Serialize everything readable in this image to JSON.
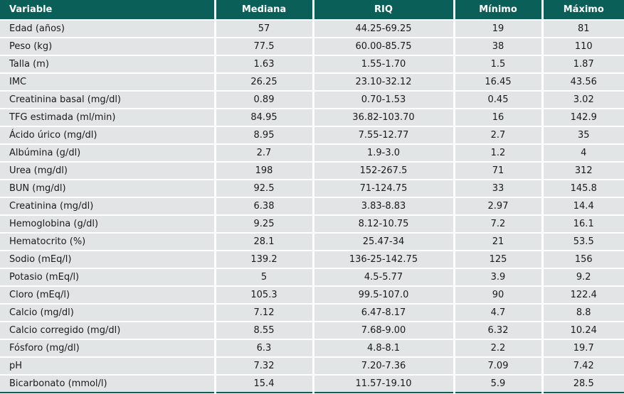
{
  "table": {
    "columns": [
      {
        "label": "Variable"
      },
      {
        "label": "Mediana"
      },
      {
        "label": "RIQ"
      },
      {
        "label": "Mínimo"
      },
      {
        "label": "Máximo"
      }
    ],
    "rows": [
      [
        "Edad (años)",
        "57",
        "44.25-69.25",
        "19",
        "81"
      ],
      [
        "Peso (kg)",
        "77.5",
        "60.00-85.75",
        "38",
        "110"
      ],
      [
        "Talla (m)",
        "1.63",
        "1.55-1.70",
        "1.5",
        "1.87"
      ],
      [
        "IMC",
        "26.25",
        "23.10-32.12",
        "16.45",
        "43.56"
      ],
      [
        "Creatinina basal (mg/dl)",
        "0.89",
        "0.70-1.53",
        "0.45",
        "3.02"
      ],
      [
        "TFG estimada (ml/min)",
        "84.95",
        "36.82-103.70",
        "16",
        "142.9"
      ],
      [
        "Ácido úrico (mg/dl)",
        "8.95",
        "7.55-12.77",
        "2.7",
        "35"
      ],
      [
        "Albúmina (g/dl)",
        "2.7",
        "1.9-3.0",
        "1.2",
        "4"
      ],
      [
        "Urea (mg/dl)",
        "198",
        "152-267.5",
        "71",
        "312"
      ],
      [
        "BUN (mg/dl)",
        "92.5",
        "71-124.75",
        "33",
        "145.8"
      ],
      [
        "Creatinina (mg/dl)",
        "6.38",
        "3.83-8.83",
        "2.97",
        "14.4"
      ],
      [
        "Hemoglobina (g/dl)",
        "9.25",
        "8.12-10.75",
        "7.2",
        "16.1"
      ],
      [
        "Hematocrito (%)",
        "28.1",
        "25.47-34",
        "21",
        "53.5"
      ],
      [
        "Sodio (mEq/l)",
        "139.2",
        "136-25-142.75",
        "125",
        "156"
      ],
      [
        "Potasio (mEq/l)",
        "5",
        "4.5-5.77",
        "3.9",
        "9.2"
      ],
      [
        "Cloro (mEq/l)",
        "105.3",
        "99.5-107.0",
        "90",
        "122.4"
      ],
      [
        "Calcio (mg/dl)",
        "7.12",
        "6.47-8.17",
        "4.7",
        "8.8"
      ],
      [
        "Calcio corregido (mg/dl)",
        "8.55",
        "7.68-9.00",
        "6.32",
        "10.24"
      ],
      [
        "Fósforo (mg/dl)",
        "6.3",
        "4.8-8.1",
        "2.2",
        "19.7"
      ],
      [
        "pH",
        "7.32",
        "7.20-7.36",
        "7.09",
        "7.42"
      ],
      [
        "Bicarbonato (mmol/l)",
        "15.4",
        "11.57-19.10",
        "5.9",
        "28.5"
      ]
    ]
  },
  "colors": {
    "header_bg": "#0a5f58",
    "header_text": "#ffffff",
    "row_bg": "#e2e5e6",
    "separator": "#ffffff",
    "cell_text": "#1a1a1a",
    "bottom_border": "#0a5f58"
  }
}
